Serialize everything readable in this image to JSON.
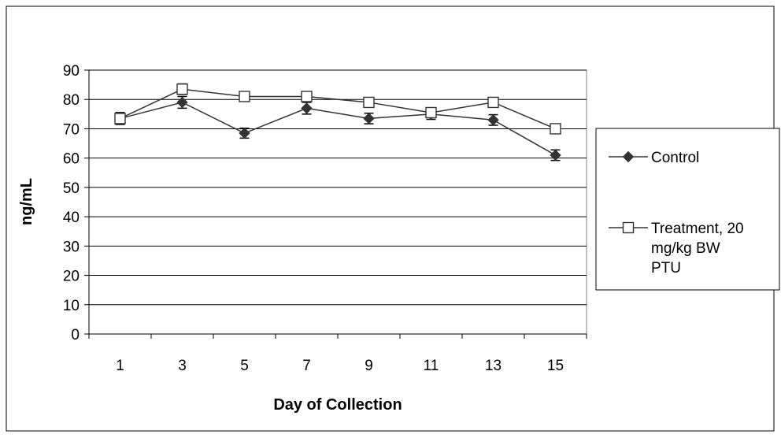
{
  "chart_data": {
    "type": "line",
    "title": "",
    "xlabel": "Day of Collection",
    "ylabel": "ng/mL",
    "categories": [
      "1",
      "3",
      "5",
      "7",
      "9",
      "11",
      "13",
      "15"
    ],
    "y_ticks": [
      "0",
      "10",
      "20",
      "30",
      "40",
      "50",
      "60",
      "70",
      "80",
      "90"
    ],
    "ylim": [
      0,
      90
    ],
    "grid": true,
    "legend_position": "right",
    "series": [
      {
        "name": "Control",
        "marker": "diamond-filled",
        "color": "#333333",
        "values": [
          73.5,
          79,
          68.5,
          77,
          73.5,
          75,
          73,
          61
        ],
        "error": [
          2,
          2,
          1.7,
          2,
          1.8,
          1.8,
          1.8,
          1.8
        ]
      },
      {
        "name": "Treatment, 20 mg/kg BW PTU",
        "legend_lines": [
          "Treatment, 20",
          "mg/kg BW",
          "PTU"
        ],
        "marker": "square-open",
        "color": "#333333",
        "values": [
          73.5,
          83.5,
          81,
          81,
          79,
          75.5,
          79,
          70
        ],
        "error": [
          2,
          1.8,
          1.6,
          1.6,
          1.6,
          1.6,
          1.5,
          1.4
        ]
      }
    ]
  }
}
